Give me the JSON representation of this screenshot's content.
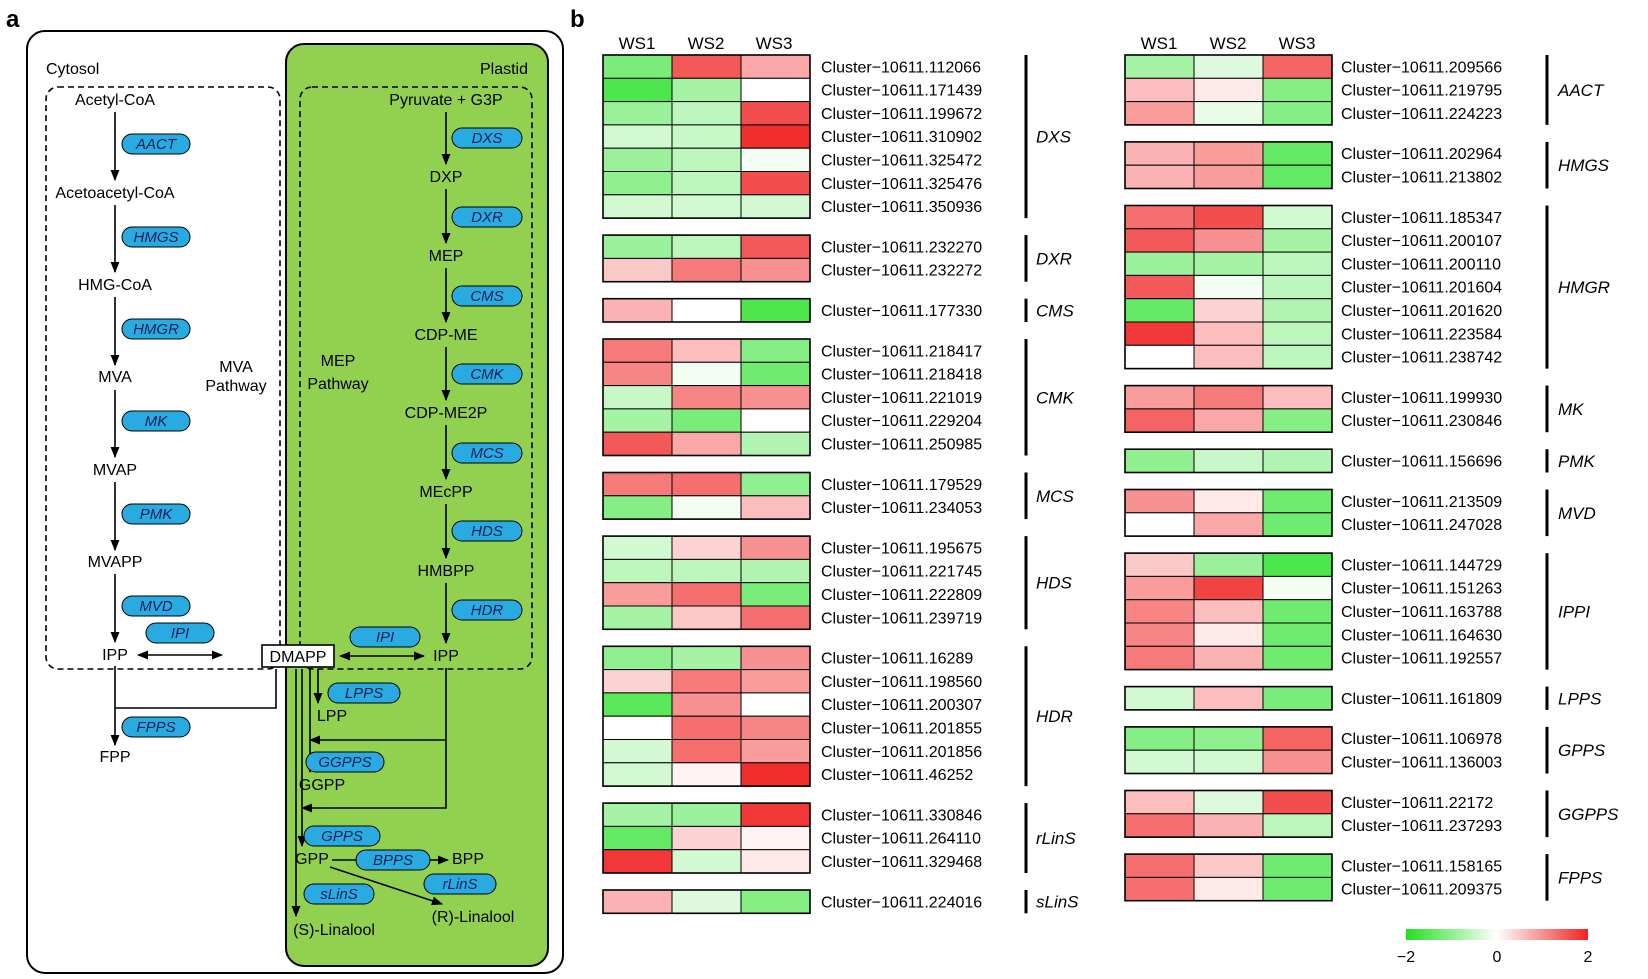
{
  "panel_a": {
    "label": "a",
    "compartments": {
      "cytosol": "Cytosol",
      "plastid": "Plastid"
    },
    "pathways": {
      "mva": [
        "MVA",
        "Pathway"
      ],
      "mep": [
        "MEP",
        "Pathway"
      ]
    },
    "metabolites": {
      "acetyl_coa": "Acetyl-CoA",
      "acetoacetyl_coa": "Acetoacetyl-CoA",
      "hmg_coa": "HMG-CoA",
      "mva": "MVA",
      "mvap": "MVAP",
      "mvapp": "MVAPP",
      "ipp_cyt": "IPP",
      "dmapp": "DMAPP",
      "fpp": "FPP",
      "pyruvate": "Pyruvate + G3P",
      "dxp": "DXP",
      "mep": "MEP",
      "cdp_me": "CDP-ME",
      "cdp_me2p": "CDP-ME2P",
      "mecpp": "MEcPP",
      "hmbpp": "HMBPP",
      "ipp_pla": "IPP",
      "lpp": "LPP",
      "ggpp": "GGPP",
      "gpp": "GPP",
      "bpp": "BPP",
      "s_linalool": "(S)-Linalool",
      "r_linalool": "(R)-Linalool"
    },
    "enzymes": {
      "aact": "AACT",
      "hmgs": "HMGS",
      "hmgr": "HMGR",
      "mk": "MK",
      "pmk": "PMK",
      "mvd": "MVD",
      "ipi_cyt": "IPI",
      "fpps": "FPPS",
      "dxs": "DXS",
      "dxr": "DXR",
      "cms": "CMS",
      "cmk": "CMK",
      "mcs": "MCS",
      "hds": "HDS",
      "hdr": "HDR",
      "ipi_pla": "IPI",
      "lpps": "LPPS",
      "ggpps": "GGPPS",
      "gpps": "GPPS",
      "bpps": "BPPS",
      "rlins": "rLinS",
      "slins": "sLinS"
    },
    "colors": {
      "plastid_fill": "#92d050",
      "enzyme_fill": "#29abe2"
    }
  },
  "panel_b": {
    "label": "b",
    "columns": [
      "WS1",
      "WS2",
      "WS3"
    ],
    "color_scale": {
      "min": -2,
      "mid": 0,
      "max": 2,
      "tick_labels": [
        "−2",
        "0",
        "2"
      ],
      "low_color": "#21e021",
      "mid_color": "#ffffff",
      "high_color": "#f02222"
    },
    "heatmap_left": [
      {
        "gene": "DXS",
        "rows": [
          {
            "id": "Cluster−10611.112066",
            "values": [
              -1.2,
              1.5,
              0.8
            ]
          },
          {
            "id": "Cluster−10611.171439",
            "values": [
              -1.6,
              -0.8,
              0.0
            ]
          },
          {
            "id": "Cluster−10611.199672",
            "values": [
              -0.9,
              -0.6,
              1.6
            ]
          },
          {
            "id": "Cluster−10611.310902",
            "values": [
              -0.4,
              -0.5,
              1.9
            ]
          },
          {
            "id": "Cluster−10611.325472",
            "values": [
              -0.9,
              -0.6,
              -0.1
            ]
          },
          {
            "id": "Cluster−10611.325476",
            "values": [
              -1.0,
              -0.6,
              1.6
            ]
          },
          {
            "id": "Cluster−10611.350936",
            "values": [
              -0.4,
              -0.4,
              -0.4
            ]
          }
        ]
      },
      {
        "gene": "DXR",
        "rows": [
          {
            "id": "Cluster−10611.232270",
            "values": [
              -0.9,
              -0.6,
              1.5
            ]
          },
          {
            "id": "Cluster−10611.232272",
            "values": [
              0.5,
              1.2,
              1.0
            ]
          }
        ]
      },
      {
        "gene": "CMS",
        "rows": [
          {
            "id": "Cluster−10611.177330",
            "values": [
              0.7,
              0.0,
              -1.6
            ]
          }
        ]
      },
      {
        "gene": "CMK",
        "rows": [
          {
            "id": "Cluster−10611.218417",
            "values": [
              1.2,
              0.6,
              -1.1
            ]
          },
          {
            "id": "Cluster−10611.218418",
            "values": [
              1.1,
              -0.1,
              -1.3
            ]
          },
          {
            "id": "Cluster−10611.221019",
            "values": [
              -0.5,
              1.1,
              1.0
            ]
          },
          {
            "id": "Cluster−10611.229204",
            "values": [
              -0.8,
              -1.2,
              0.0
            ]
          },
          {
            "id": "Cluster−10611.250985",
            "values": [
              1.5,
              0.8,
              -0.7
            ]
          }
        ]
      },
      {
        "gene": "MCS",
        "rows": [
          {
            "id": "Cluster−10611.179529",
            "values": [
              1.2,
              1.3,
              -1.0
            ]
          },
          {
            "id": "Cluster−10611.234053",
            "values": [
              -1.1,
              -0.1,
              0.6
            ]
          }
        ]
      },
      {
        "gene": "HDS",
        "rows": [
          {
            "id": "Cluster−10611.195675",
            "values": [
              -0.4,
              0.4,
              1.0
            ]
          },
          {
            "id": "Cluster−10611.221745",
            "values": [
              -0.6,
              -0.6,
              -0.7
            ]
          },
          {
            "id": "Cluster−10611.222809",
            "values": [
              0.9,
              1.3,
              -1.2
            ]
          },
          {
            "id": "Cluster−10611.239719",
            "values": [
              -0.8,
              0.5,
              1.3
            ]
          }
        ]
      },
      {
        "gene": "HDR",
        "rows": [
          {
            "id": "Cluster−10611.16289",
            "values": [
              -1.0,
              -0.8,
              1.0
            ]
          },
          {
            "id": "Cluster−10611.198560",
            "values": [
              0.4,
              1.2,
              0.9
            ]
          },
          {
            "id": "Cluster−10611.200307",
            "values": [
              -1.5,
              1.0,
              0.0
            ]
          },
          {
            "id": "Cluster−10611.201855",
            "values": [
              0.0,
              1.3,
              1.1
            ]
          },
          {
            "id": "Cluster−10611.201856",
            "values": [
              -0.4,
              1.3,
              0.9
            ]
          },
          {
            "id": "Cluster−10611.46252",
            "values": [
              -0.4,
              0.1,
              1.9
            ]
          }
        ]
      },
      {
        "gene": "rLinS",
        "rows": [
          {
            "id": "Cluster−10611.330846",
            "values": [
              -0.8,
              -0.9,
              1.8
            ]
          },
          {
            "id": "Cluster−10611.264110",
            "values": [
              -1.4,
              0.4,
              0.1
            ]
          },
          {
            "id": "Cluster−10611.329468",
            "values": [
              1.8,
              -0.4,
              0.2
            ]
          }
        ]
      },
      {
        "gene": "sLinS",
        "rows": [
          {
            "id": "Cluster−10611.224016",
            "values": [
              0.7,
              -0.3,
              -1.1
            ]
          }
        ]
      }
    ],
    "heatmap_right": [
      {
        "gene": "AACT",
        "rows": [
          {
            "id": "Cluster−10611.209566",
            "values": [
              -0.8,
              -0.3,
              1.4
            ]
          },
          {
            "id": "Cluster−10611.219795",
            "values": [
              0.6,
              0.2,
              -1.1
            ]
          },
          {
            "id": "Cluster−10611.224223",
            "values": [
              0.9,
              -0.2,
              -1.1
            ]
          }
        ]
      },
      {
        "gene": "HMGS",
        "rows": [
          {
            "id": "Cluster−10611.202964",
            "values": [
              0.7,
              0.9,
              -1.4
            ]
          },
          {
            "id": "Cluster−10611.213802",
            "values": [
              0.7,
              0.9,
              -1.4
            ]
          }
        ]
      },
      {
        "gene": "HMGR",
        "rows": [
          {
            "id": "Cluster−10611.185347",
            "values": [
              1.3,
              1.6,
              -0.4
            ]
          },
          {
            "id": "Cluster−10611.200107",
            "values": [
              1.5,
              1.0,
              -0.8
            ]
          },
          {
            "id": "Cluster−10611.200110",
            "values": [
              -0.9,
              -0.8,
              -0.6
            ]
          },
          {
            "id": "Cluster−10611.201604",
            "values": [
              1.5,
              -0.1,
              -0.6
            ]
          },
          {
            "id": "Cluster−10611.201620",
            "values": [
              -1.4,
              0.4,
              -0.7
            ]
          },
          {
            "id": "Cluster−10611.223584",
            "values": [
              1.8,
              0.6,
              -0.6
            ]
          },
          {
            "id": "Cluster−10611.238742",
            "values": [
              0.0,
              0.6,
              -0.6
            ]
          }
        ]
      },
      {
        "gene": "MK",
        "rows": [
          {
            "id": "Cluster−10611.199930",
            "values": [
              0.9,
              1.2,
              0.6
            ]
          },
          {
            "id": "Cluster−10611.230846",
            "values": [
              1.4,
              0.8,
              -1.1
            ]
          }
        ]
      },
      {
        "gene": "PMK",
        "rows": [
          {
            "id": "Cluster−10611.156696",
            "values": [
              -1.0,
              -0.5,
              -0.7
            ]
          }
        ]
      },
      {
        "gene": "MVD",
        "rows": [
          {
            "id": "Cluster−10611.213509",
            "values": [
              1.0,
              0.2,
              -1.3
            ]
          },
          {
            "id": "Cluster−10611.247028",
            "values": [
              0.0,
              0.8,
              -1.3
            ]
          }
        ]
      },
      {
        "gene": "IPPI",
        "rows": [
          {
            "id": "Cluster−10611.144729",
            "values": [
              0.5,
              -0.9,
              -1.6
            ]
          },
          {
            "id": "Cluster−10611.151263",
            "values": [
              0.9,
              1.7,
              -0.1
            ]
          },
          {
            "id": "Cluster−10611.163788",
            "values": [
              1.1,
              0.6,
              -1.3
            ]
          },
          {
            "id": "Cluster−10611.164630",
            "values": [
              1.1,
              0.2,
              -1.3
            ]
          },
          {
            "id": "Cluster−10611.192557",
            "values": [
              1.2,
              0.7,
              -1.3
            ]
          }
        ]
      },
      {
        "gene": "LPPS",
        "rows": [
          {
            "id": "Cluster−10611.161809",
            "values": [
              -0.4,
              0.6,
              -1.2
            ]
          }
        ]
      },
      {
        "gene": "GPPS",
        "rows": [
          {
            "id": "Cluster−10611.106978",
            "values": [
              -1.1,
              -1.0,
              1.4
            ]
          },
          {
            "id": "Cluster−10611.136003",
            "values": [
              -0.4,
              -0.4,
              1.0
            ]
          }
        ]
      },
      {
        "gene": "GGPPS",
        "rows": [
          {
            "id": "Cluster−10611.22172",
            "values": [
              0.6,
              -0.3,
              1.6
            ]
          },
          {
            "id": "Cluster−10611.237293",
            "values": [
              1.3,
              0.7,
              -0.6
            ]
          }
        ]
      },
      {
        "gene": "FPPS",
        "rows": [
          {
            "id": "Cluster−10611.158165",
            "values": [
              1.3,
              0.5,
              -1.3
            ]
          },
          {
            "id": "Cluster−10611.209375",
            "values": [
              1.3,
              0.2,
              -1.3
            ]
          }
        ]
      }
    ]
  }
}
